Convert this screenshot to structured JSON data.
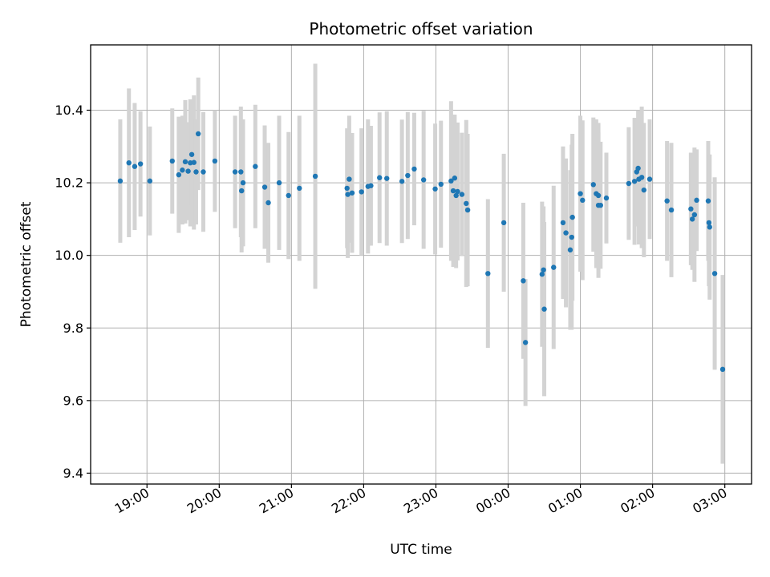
{
  "chart_data": {
    "type": "scatter",
    "title": "Photometric offset variation",
    "xlabel": "UTC time",
    "ylabel": "Photometric offset",
    "x_ticks": [
      "19:00",
      "20:00",
      "21:00",
      "22:00",
      "23:00",
      "00:00",
      "01:00",
      "02:00",
      "03:00"
    ],
    "x_tick_hours": [
      19,
      20,
      21,
      22,
      23,
      24,
      25,
      26,
      27
    ],
    "xlim": [
      18.22,
      27.37
    ],
    "y_ticks": [
      9.4,
      9.6,
      9.8,
      10.0,
      10.2,
      10.4
    ],
    "ylim": [
      9.37,
      10.58
    ],
    "grid": true,
    "colors": {
      "point": "#1f77b4",
      "errorbar": "#d3d3d3",
      "grid": "#b0b0b0"
    },
    "series": [
      {
        "x": [
          18.63,
          18.75,
          18.83,
          18.91,
          19.04,
          19.35,
          19.44,
          19.49,
          19.53,
          19.57,
          19.6,
          19.62,
          19.65,
          19.68,
          19.71,
          19.78,
          19.94,
          20.22,
          20.3,
          20.31,
          20.33,
          20.5,
          20.63,
          20.68,
          20.83,
          20.96,
          21.11,
          21.33,
          21.77,
          21.78,
          21.8,
          21.84,
          21.97,
          22.06,
          22.1,
          22.22,
          22.32,
          22.53,
          22.61,
          22.7,
          22.83,
          22.99,
          23.07,
          23.21,
          23.24,
          23.26,
          23.28,
          23.3,
          23.36,
          23.42,
          23.44,
          23.72,
          23.94,
          24.21,
          24.24,
          24.47,
          24.49,
          24.5,
          24.63,
          24.76,
          24.8,
          24.86,
          24.88,
          24.89,
          25.0,
          25.03,
          25.18,
          25.22,
          25.25,
          25.25,
          25.28,
          25.36,
          25.67,
          25.75,
          25.78,
          25.8,
          25.81,
          25.85,
          25.88,
          25.96,
          26.2,
          26.26,
          26.53,
          26.55,
          26.58,
          26.61,
          26.77,
          26.78,
          26.79,
          26.86,
          26.97
        ],
        "y": [
          10.205,
          10.255,
          10.245,
          10.252,
          10.205,
          10.26,
          10.222,
          10.235,
          10.258,
          10.232,
          10.255,
          10.278,
          10.256,
          10.23,
          10.335,
          10.23,
          10.26,
          10.23,
          10.23,
          10.178,
          10.2,
          10.245,
          10.188,
          10.145,
          10.2,
          10.165,
          10.185,
          10.218,
          10.185,
          10.168,
          10.21,
          10.172,
          10.175,
          10.19,
          10.192,
          10.214,
          10.212,
          10.204,
          10.22,
          10.238,
          10.208,
          10.183,
          10.196,
          10.205,
          10.178,
          10.213,
          10.165,
          10.176,
          10.168,
          10.143,
          10.125,
          9.95,
          10.09,
          9.93,
          9.76,
          9.948,
          9.96,
          9.852,
          9.967,
          10.09,
          10.062,
          10.015,
          10.05,
          10.105,
          10.17,
          10.152,
          10.195,
          10.17,
          10.165,
          10.138,
          10.138,
          10.158,
          10.198,
          10.204,
          10.23,
          10.24,
          10.21,
          10.215,
          10.18,
          10.21,
          10.15,
          10.125,
          10.128,
          10.1,
          10.112,
          10.152,
          10.15,
          10.09,
          10.078,
          9.95,
          9.686
        ],
        "error": [
          0.17,
          0.205,
          0.175,
          0.145,
          0.15,
          0.145,
          0.16,
          0.15,
          0.17,
          0.135,
          0.175,
          0.14,
          0.185,
          0.145,
          0.155,
          0.165,
          0.14,
          0.155,
          0.18,
          0.17,
          0.175,
          0.17,
          0.17,
          0.165,
          0.185,
          0.175,
          0.2,
          0.31,
          0.165,
          0.175,
          0.175,
          0.165,
          0.175,
          0.185,
          0.165,
          0.18,
          0.185,
          0.17,
          0.175,
          0.155,
          0.19,
          0.18,
          0.175,
          0.22,
          0.21,
          0.175,
          0.2,
          0.19,
          0.17,
          0.23,
          0.21,
          0.205,
          0.19,
          0.215,
          0.175,
          0.2,
          0.175,
          0.24,
          0.225,
          0.21,
          0.205,
          0.22,
          0.255,
          0.23,
          0.215,
          0.22,
          0.185,
          0.205,
          0.2,
          0.2,
          0.175,
          0.125,
          0.155,
          0.175,
          0.145,
          0.16,
          0.18,
          0.195,
          0.185,
          0.165,
          0.165,
          0.185,
          0.155,
          0.14,
          0.185,
          0.14,
          0.165,
          0.175,
          0.2,
          0.265,
          0.26
        ]
      }
    ]
  }
}
